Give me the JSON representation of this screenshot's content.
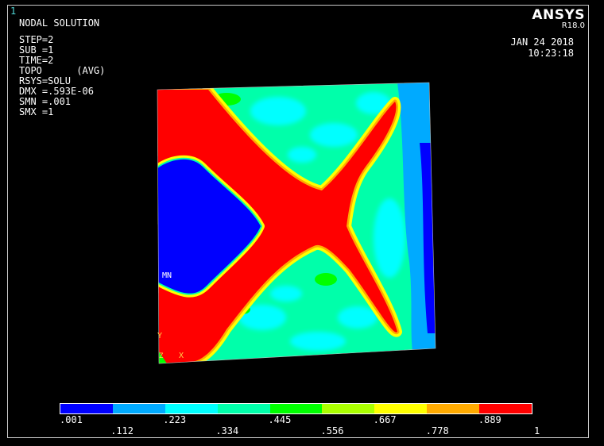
{
  "window_number": "1",
  "header": {
    "title": "NODAL SOLUTION",
    "params": [
      "STEP=2",
      "SUB =1",
      "TIME=2",
      "TOPO      (AVG)",
      "RSYS=SOLU",
      "DMX =.593E-06",
      "SMN =.001",
      "SMX =1"
    ]
  },
  "brand": {
    "name": "ANSYS",
    "version": "R18.0"
  },
  "datetime": {
    "date": "JAN 24 2018",
    "time": "10:23:18"
  },
  "plot_labels": {
    "min_marker": "MN",
    "axis_y": "Y",
    "axis_x": "X",
    "axis_z": "Z"
  },
  "chart_data": {
    "type": "heatmap",
    "field": "TOPO",
    "min": 0.001,
    "max": 1,
    "colormap": [
      "#0000ff",
      "#00aaff",
      "#00ffff",
      "#00ffaa",
      "#00ff00",
      "#aaff00",
      "#ffff00",
      "#ffaa00",
      "#ff0000"
    ],
    "legend_ticks": [
      ".001",
      ".112",
      ".223",
      ".334",
      ".445",
      ".556",
      ".667",
      ".778",
      ".889",
      "1"
    ]
  }
}
